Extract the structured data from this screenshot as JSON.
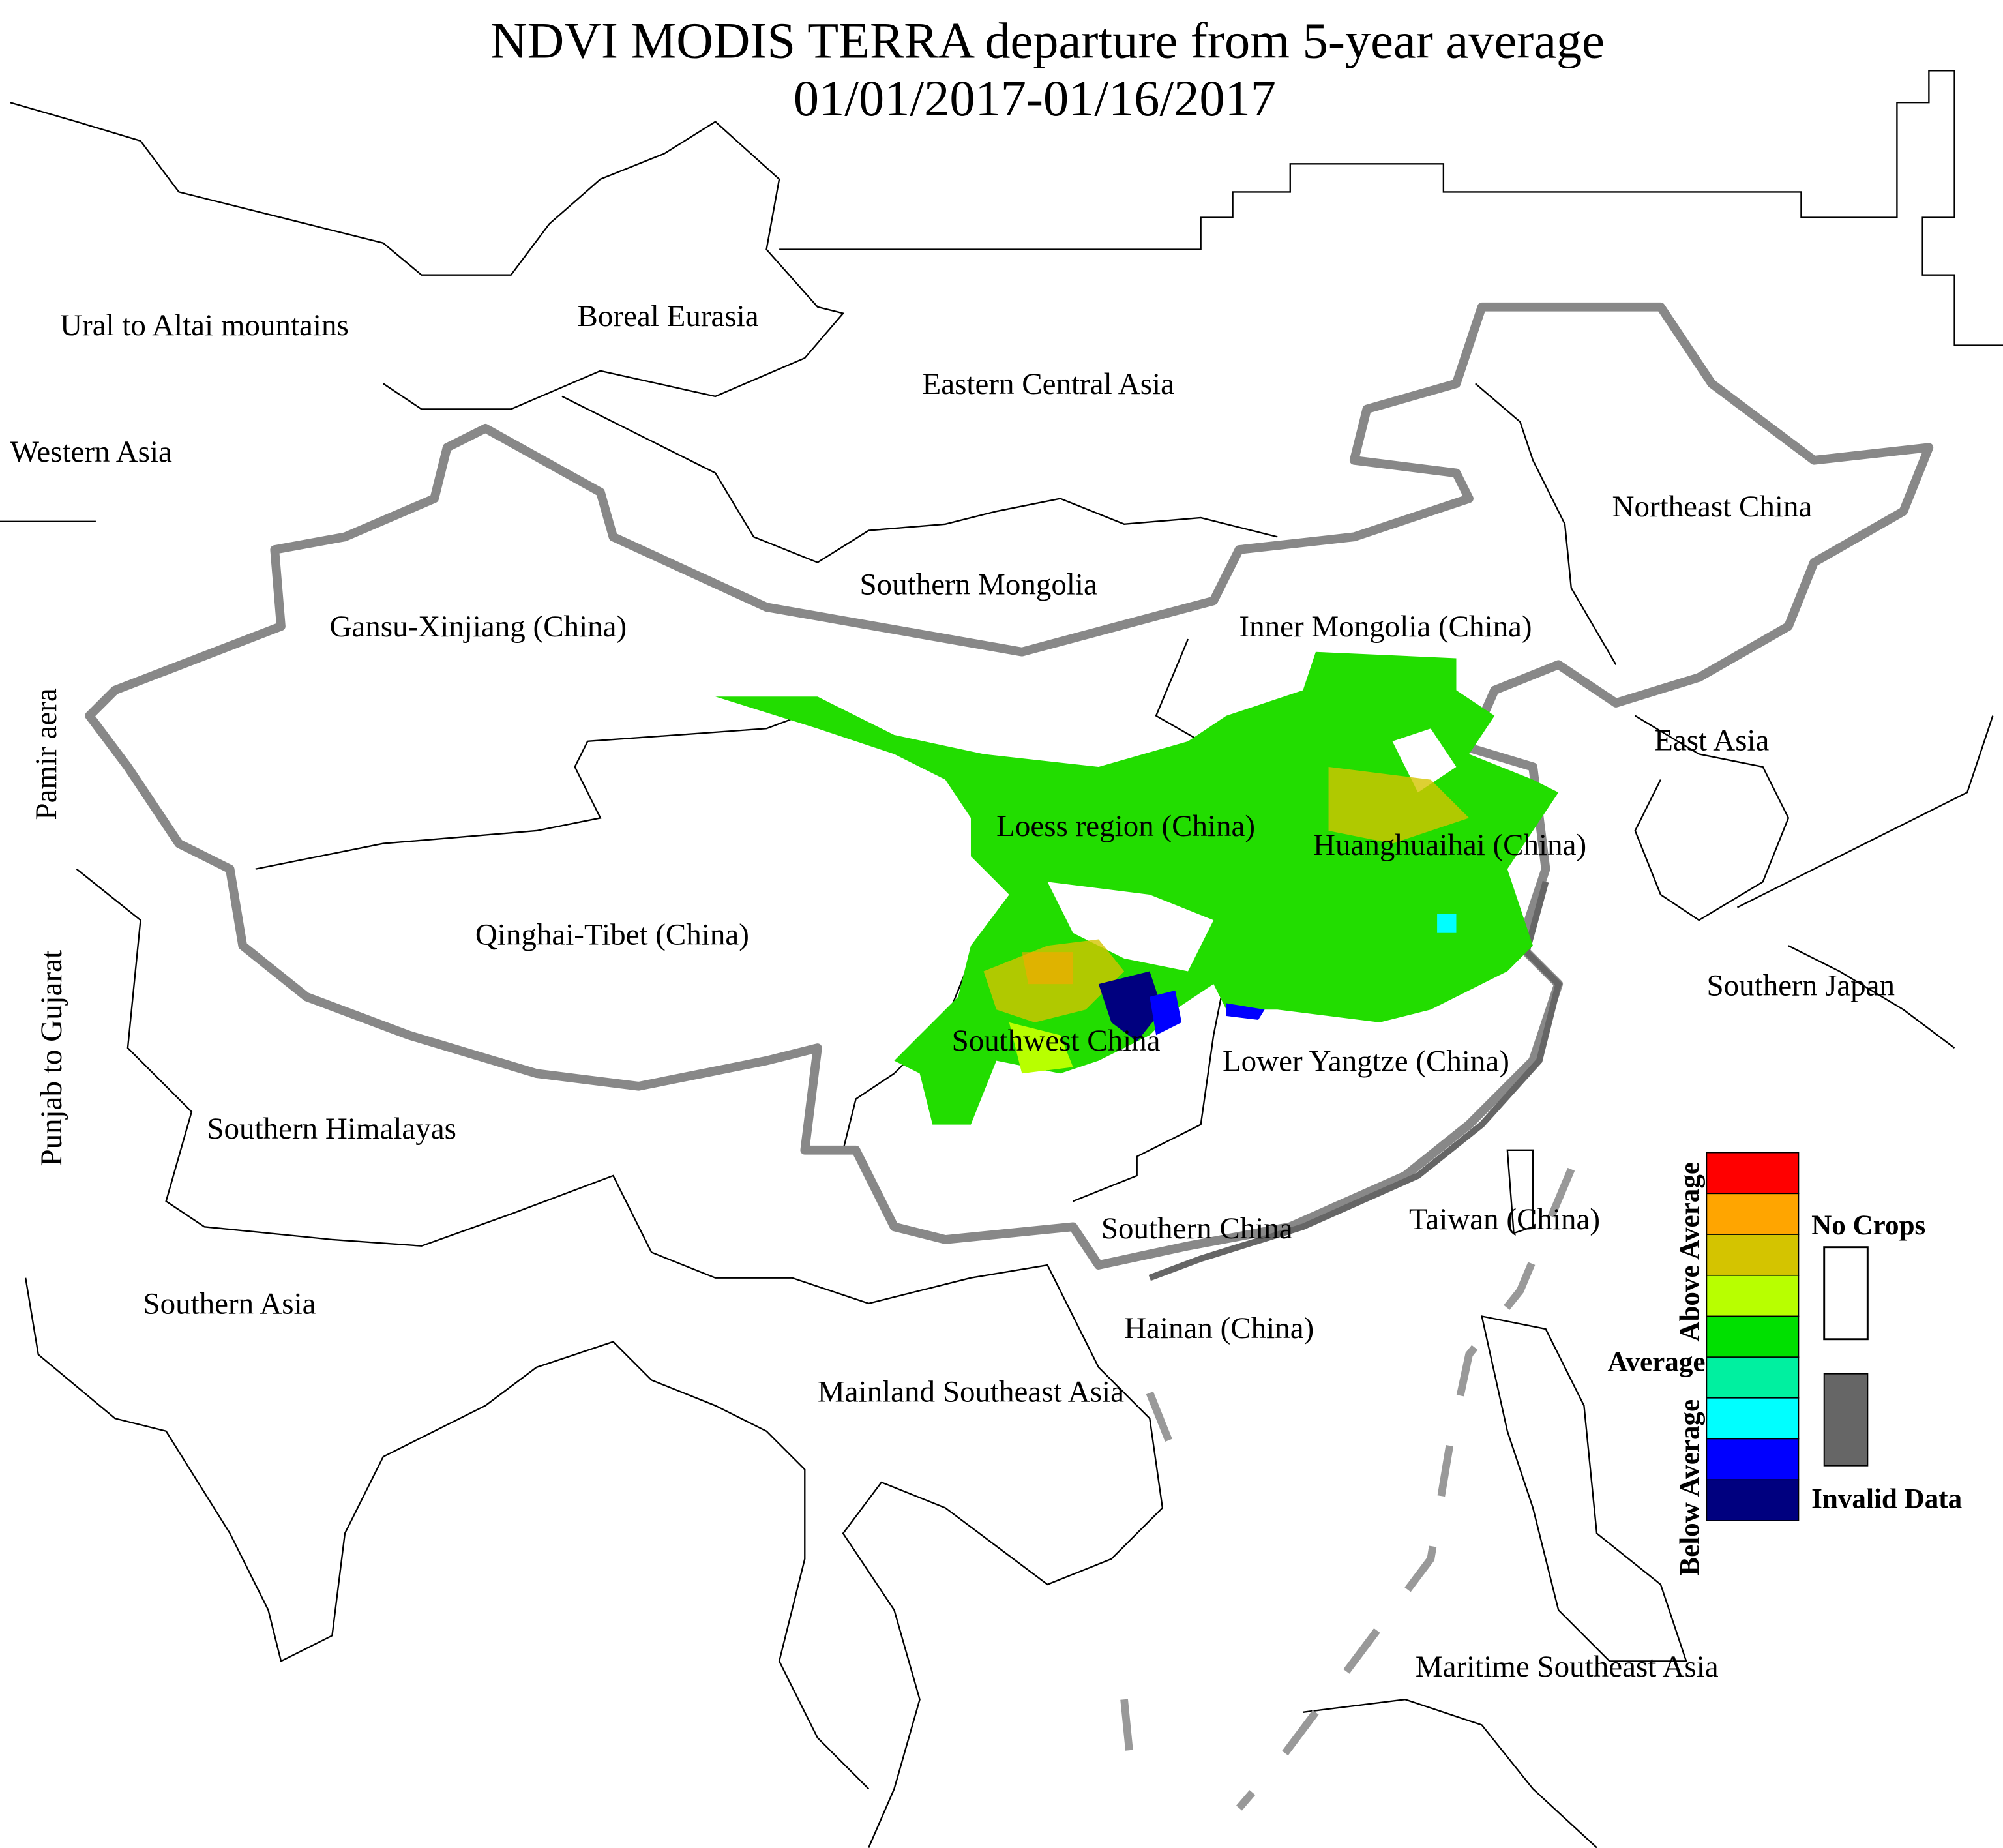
{
  "title": "NDVI MODIS TERRA departure from 5-year average",
  "subtitle": "01/01/2017-01/16/2017",
  "regions": [
    "Ural to Altai mountains",
    "Boreal Eurasia",
    "Eastern Central Asia",
    "Western Asia",
    "Northeast China",
    "Southern Mongolia",
    "Gansu-Xinjiang (China)",
    "Inner Mongolia (China)",
    "Pamir aera",
    "East Asia",
    "Loess region (China)",
    "Huanghuaihai (China)",
    "Qinghai-Tibet (China)",
    "Punjab to Gujarat",
    "Southern Japan",
    "Southwest China",
    "Lower Yangtze (China)",
    "Southern Himalayas",
    "Southern China",
    "Taiwan (China)",
    "Southern Asia",
    "Hainan (China)",
    "Mainland Southeast Asia",
    "Maritime Southeast Asia"
  ],
  "legend": {
    "above": "Above Average",
    "average": "Average",
    "below": "Below Average",
    "no_crops": "No Crops",
    "invalid": "Invalid Data",
    "colors": [
      "#ff0000",
      "#ffa500",
      "#d4c400",
      "#b8ff00",
      "#00e000",
      "#00f0a0",
      "#00ffff",
      "#0000ff",
      "#00007f"
    ],
    "no_crops_color": "#ffffff",
    "invalid_color": "#666666"
  }
}
